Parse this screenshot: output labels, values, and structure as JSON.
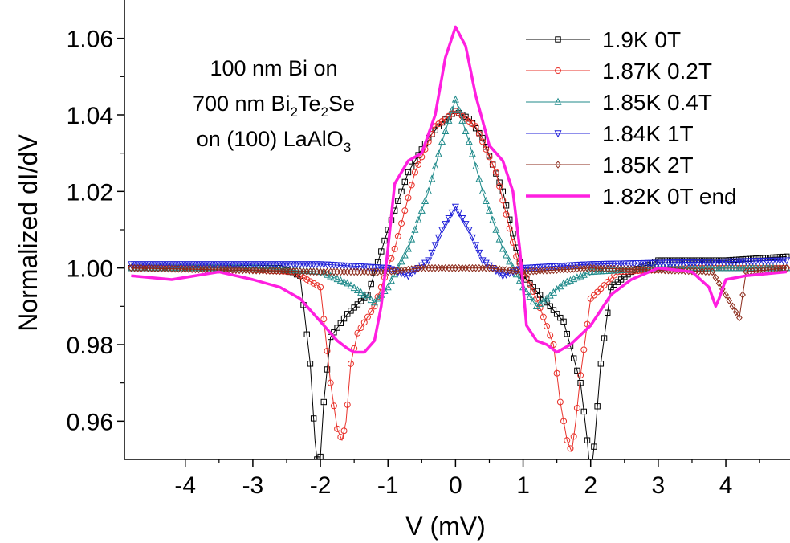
{
  "chart_data": {
    "type": "line",
    "xlabel": "V (mV)",
    "ylabel": "Normalized dI/dV",
    "xlim": [
      -4.9,
      4.95
    ],
    "ylim": [
      0.95,
      1.07
    ],
    "xticks": [
      "-4",
      "-3",
      "-2",
      "-1",
      "0",
      "1",
      "2",
      "3",
      "4"
    ],
    "yticks": [
      "0.96",
      "0.98",
      "1.00",
      "1.02",
      "1.04",
      "1.06"
    ],
    "annotation": {
      "line1": "100 nm Bi on",
      "line2_pre": "700 nm Bi",
      "line2_sub1": "2",
      "line2_mid": "Te",
      "line2_sub2": "2",
      "line2_post": "Se",
      "line3_pre": "on (100) LaAlO",
      "line3_sub": "3"
    },
    "legend_position": "top-right",
    "series": [
      {
        "name": "1.9K  0T",
        "color": "#000000",
        "marker": "square",
        "x": [
          -4.8,
          -3.5,
          -2.6,
          -2.3,
          -2.15,
          -2.08,
          -2.02,
          -1.95,
          -1.85,
          -1.6,
          -1.3,
          -1.0,
          -0.7,
          -0.4,
          -0.2,
          0.0,
          0.2,
          0.4,
          0.7,
          1.0,
          1.3,
          1.6,
          1.85,
          1.95,
          2.0,
          2.06,
          2.15,
          2.3,
          2.6,
          3.0,
          4.0,
          4.9
        ],
        "y": [
          1.0,
          1.0,
          1.0,
          0.998,
          0.975,
          0.955,
          0.945,
          0.965,
          0.982,
          0.988,
          0.993,
          1.01,
          1.025,
          1.034,
          1.038,
          1.041,
          1.039,
          1.034,
          1.02,
          0.998,
          0.992,
          0.986,
          0.97,
          0.955,
          0.945,
          0.955,
          0.975,
          0.995,
          0.999,
          1.002,
          1.002,
          1.003
        ]
      },
      {
        "name": "1.87K  0.2T",
        "color": "#e8312a",
        "marker": "circle",
        "x": [
          -4.8,
          -3.5,
          -2.4,
          -2.0,
          -1.85,
          -1.75,
          -1.68,
          -1.62,
          -1.55,
          -1.45,
          -1.2,
          -0.9,
          -0.6,
          -0.3,
          0.0,
          0.3,
          0.6,
          0.9,
          1.2,
          1.45,
          1.55,
          1.65,
          1.72,
          1.78,
          1.85,
          2.0,
          2.4,
          3.5,
          4.9
        ],
        "y": [
          1.0,
          1.0,
          0.999,
          0.995,
          0.97,
          0.958,
          0.955,
          0.96,
          0.975,
          0.983,
          0.99,
          1.005,
          1.025,
          1.037,
          1.041,
          1.037,
          1.025,
          1.003,
          0.992,
          0.98,
          0.965,
          0.955,
          0.952,
          0.96,
          0.972,
          0.992,
          0.999,
          1.0,
          1.0
        ]
      },
      {
        "name": "1.85K  0.4T",
        "color": "#1f8a8a",
        "marker": "triangle-up",
        "x": [
          -4.8,
          -3.0,
          -2.0,
          -1.6,
          -1.35,
          -1.2,
          -1.0,
          -0.7,
          -0.4,
          -0.2,
          0.0,
          0.2,
          0.4,
          0.7,
          1.0,
          1.2,
          1.35,
          1.6,
          2.0,
          3.0,
          4.0,
          4.9
        ],
        "y": [
          1.0,
          1.0,
          0.999,
          0.996,
          0.993,
          0.991,
          0.995,
          1.005,
          1.02,
          1.033,
          1.044,
          1.033,
          1.02,
          1.005,
          0.995,
          0.99,
          0.992,
          0.996,
          0.999,
          1.0,
          1.0,
          1.0
        ]
      },
      {
        "name": "1.84K  1T",
        "color": "#2020d8",
        "marker": "triangle-down",
        "x": [
          -4.8,
          -2.0,
          -1.0,
          -0.7,
          -0.4,
          -0.2,
          0.0,
          0.2,
          0.4,
          0.7,
          1.0,
          2.0,
          4.9
        ],
        "y": [
          1.001,
          1.001,
          1.0,
          0.998,
          1.002,
          1.01,
          1.016,
          1.01,
          1.002,
          0.998,
          1.0,
          1.001,
          1.002
        ]
      },
      {
        "name": "1.85K  2T",
        "color": "#8b2a1a",
        "marker": "diamond",
        "x": [
          -4.8,
          -2.0,
          -1.0,
          -0.5,
          0.0,
          0.5,
          1.0,
          2.0,
          3.8,
          4.1,
          4.2,
          4.3,
          4.9
        ],
        "y": [
          1.0,
          0.999,
          0.999,
          1.0,
          1.0,
          1.0,
          0.999,
          1.0,
          0.999,
          0.99,
          0.987,
          0.999,
          1.0
        ]
      },
      {
        "name": "1.82K  0T end",
        "color": "#ff1fe0",
        "marker": "none",
        "x": [
          -4.8,
          -4.2,
          -3.5,
          -3.0,
          -2.6,
          -2.3,
          -2.1,
          -1.9,
          -1.75,
          -1.6,
          -1.5,
          -1.35,
          -1.2,
          -1.1,
          -1.0,
          -0.9,
          -0.7,
          -0.5,
          -0.3,
          -0.15,
          0.0,
          0.15,
          0.3,
          0.5,
          0.7,
          0.85,
          0.95,
          1.05,
          1.2,
          1.35,
          1.5,
          1.7,
          2.0,
          2.3,
          2.6,
          3.0,
          3.5,
          3.75,
          3.85,
          3.9,
          4.0,
          4.3,
          4.9
        ],
        "y": [
          0.998,
          0.997,
          0.999,
          0.997,
          0.995,
          0.992,
          0.988,
          0.984,
          0.981,
          0.979,
          0.978,
          0.978,
          0.981,
          0.99,
          1.005,
          1.022,
          1.028,
          1.03,
          1.04,
          1.055,
          1.063,
          1.058,
          1.045,
          1.032,
          1.028,
          1.02,
          1.005,
          0.985,
          0.981,
          0.98,
          0.978,
          0.98,
          0.985,
          0.993,
          0.997,
          1.0,
          0.999,
          0.995,
          0.99,
          0.992,
          0.997,
          0.998,
          0.999
        ]
      }
    ]
  }
}
